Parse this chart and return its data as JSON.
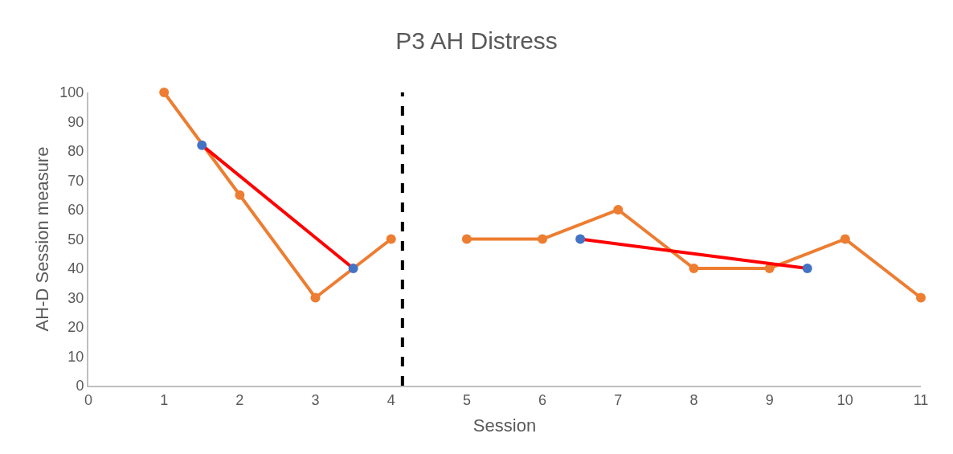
{
  "chart_data": {
    "type": "line",
    "title": "P3 AH Distress",
    "xlabel": "Session",
    "ylabel": "AH-D Session measure",
    "xlim": [
      0,
      11
    ],
    "xticks": [
      0,
      1,
      2,
      3,
      4,
      5,
      6,
      7,
      8,
      9,
      10,
      11
    ],
    "ylim": [
      0,
      100
    ],
    "yticks": [
      0,
      10,
      20,
      30,
      40,
      50,
      60,
      70,
      80,
      90,
      100
    ],
    "marker": "circle",
    "line_style": "solid",
    "series": [
      {
        "color": "#ed7d31",
        "x": [
          1,
          2,
          3,
          4
        ],
        "values": [
          100,
          65,
          30,
          50
        ]
      },
      {
        "color": "#ed7d31",
        "x": [
          5,
          6,
          7,
          8,
          9,
          10,
          11
        ],
        "values": [
          50,
          50,
          60,
          40,
          40,
          50,
          30
        ]
      },
      {
        "color": "#ff0000",
        "colors": [
          "#4472c4",
          "#4472c4"
        ],
        "x": [
          1.5,
          3.5
        ],
        "values": [
          82,
          40
        ]
      },
      {
        "color": "#ff0000",
        "colors": [
          "#4472c4",
          "#4472c4"
        ],
        "x": [
          6.5,
          9.5
        ],
        "values": [
          50,
          40
        ]
      }
    ],
    "ref_lines": [
      {
        "axis": "x",
        "value": 4.15,
        "color": "#000000",
        "line_style": "dashed"
      }
    ]
  }
}
